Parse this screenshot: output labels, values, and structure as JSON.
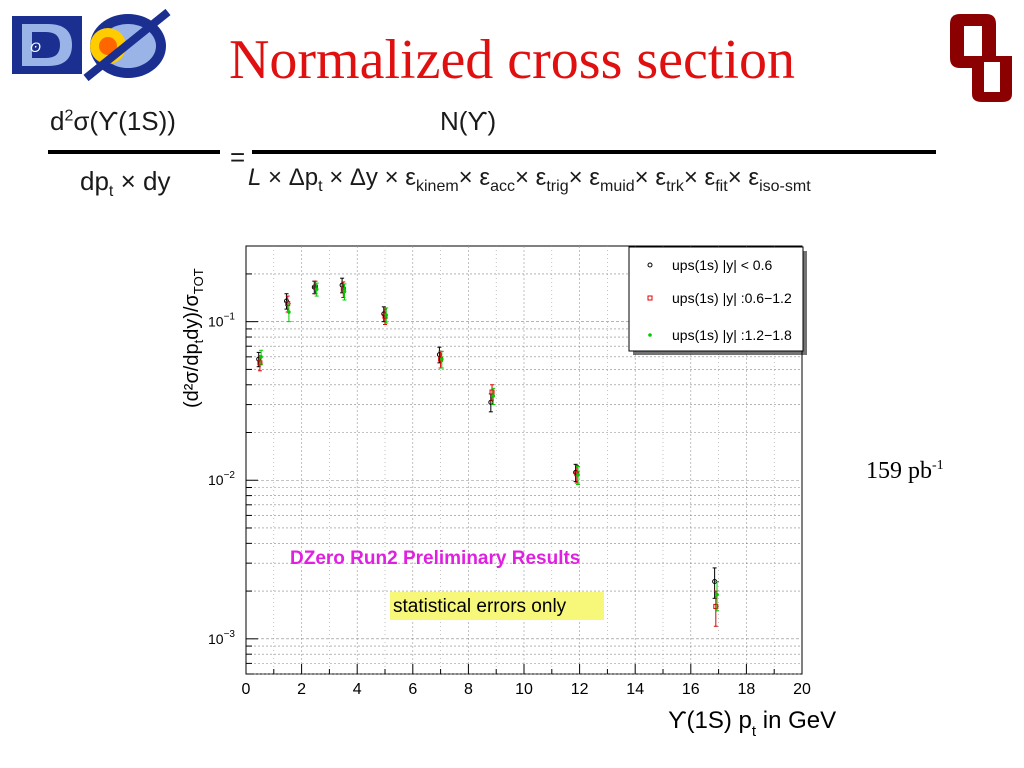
{
  "slide": {
    "title": "Normalized cross section",
    "luminosity": "159 pb",
    "luminosity_sup": "-1"
  },
  "formula": {
    "num_left_d": "d",
    "num_left_sup": "2",
    "num_left_rest": "σ(ϒ(1S))",
    "den_left_dp": "dp",
    "den_left_sub": "t",
    "den_left_rest": " × dy",
    "equals": "=",
    "num_right": "N(ϒ)",
    "den_right_L": "L",
    "den_right_1": " × Δp",
    "den_right_1_sub": "t",
    "den_right_2": " × Δy × ε",
    "den_right_2_sub": "kinem",
    "den_right_3": "× ε",
    "den_right_3_sub": "acc",
    "den_right_4": "× ε",
    "den_right_4_sub": "trig",
    "den_right_5": "× ε",
    "den_right_5_sub": "muid",
    "den_right_6": "× ε",
    "den_right_6_sub": "trk",
    "den_right_7": "× ε",
    "den_right_7_sub": "fit",
    "den_right_8": "× ε",
    "den_right_8_sub": "iso-smt"
  },
  "colors": {
    "title": "#e01010",
    "series_1": "#000000",
    "series_2": "#e00000",
    "series_3": "#00cc00",
    "annotation_magenta": "#e020e0",
    "annotation_highlight": "#f7f77a"
  },
  "chart_data": {
    "type": "scatter",
    "xlabel": "ϒ(1S) p",
    "xlabel_sub": "t",
    "xlabel_unit": " in GeV",
    "ylabel": "(d²σ/dp",
    "ylabel_sub": "t",
    "ylabel_rest": "dy)/σ",
    "ylabel_sub2": "TOT",
    "xlim": [
      0,
      20
    ],
    "ylim": [
      0.0006,
      0.3
    ],
    "yscale": "log",
    "grid": true,
    "legend_position": "top-right",
    "x_ticks": [
      0,
      2,
      4,
      6,
      8,
      10,
      12,
      14,
      16,
      18,
      20
    ],
    "x_tick_labels": [
      "0",
      "2",
      "4",
      "6",
      "8",
      "10",
      "12",
      "14",
      "16",
      "18",
      "20"
    ],
    "y_ticks": [
      0.001,
      0.01,
      0.1
    ],
    "y_tick_labels": [
      {
        "base": "10",
        "exp": "−3"
      },
      {
        "base": "10",
        "exp": "−2"
      },
      {
        "base": "10",
        "exp": "−1"
      }
    ],
    "annotations": [
      "DZero Run2 Preliminary Results",
      "statistical errors only"
    ],
    "series": [
      {
        "name": "ups(1s) |y| < 0.6",
        "marker": "circle",
        "x": [
          0.5,
          1.5,
          2.5,
          3.5,
          5.0,
          7.0,
          8.85,
          11.9,
          16.9
        ],
        "y": [
          0.058,
          0.135,
          0.165,
          0.17,
          0.112,
          0.062,
          0.031,
          0.0112,
          0.0023
        ],
        "err": [
          0.006,
          0.015,
          0.015,
          0.018,
          0.012,
          0.007,
          0.004,
          0.0014,
          0.0005
        ]
      },
      {
        "name": "ups(1s) |y| :0.6−1.2",
        "marker": "square",
        "x": [
          0.5,
          1.5,
          2.5,
          3.5,
          5.0,
          7.0,
          8.85,
          11.9,
          16.9
        ],
        "y": [
          0.055,
          0.13,
          0.165,
          0.16,
          0.108,
          0.058,
          0.036,
          0.011,
          0.0016
        ],
        "err": [
          0.006,
          0.015,
          0.015,
          0.018,
          0.012,
          0.007,
          0.004,
          0.0014,
          0.0004
        ]
      },
      {
        "name": "ups(1s) |y| :1.2−1.8",
        "marker": "dot",
        "x": [
          0.5,
          1.5,
          2.5,
          3.5,
          5.0,
          7.0,
          8.85,
          11.9,
          16.9
        ],
        "y": [
          0.06,
          0.115,
          0.16,
          0.155,
          0.11,
          0.058,
          0.034,
          0.0108,
          0.0019
        ],
        "err": [
          0.006,
          0.015,
          0.015,
          0.018,
          0.012,
          0.007,
          0.004,
          0.0014,
          0.0004
        ]
      }
    ]
  }
}
